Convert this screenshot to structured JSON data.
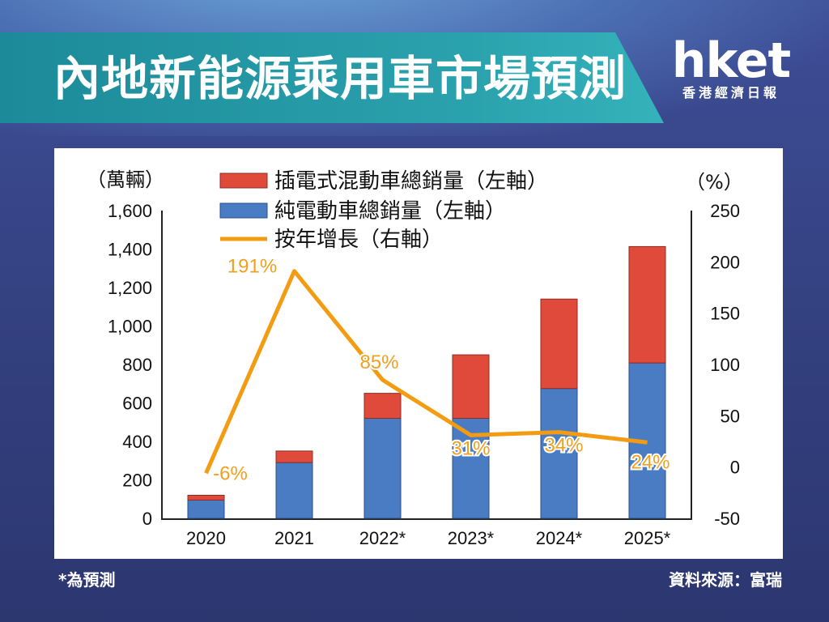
{
  "title": "內地新能源乘用車市場預測",
  "logo": {
    "main": "hket",
    "sub": "香港經濟日報"
  },
  "footnote": "*為預測",
  "source": "資料來源：富瑞",
  "colors": {
    "phev": "#e04a3a",
    "bev": "#4a7cc4",
    "growth": "#f39c12"
  },
  "chart_data": {
    "type": "bar",
    "stacked": true,
    "categories": [
      "2020",
      "2021",
      "2022*",
      "2023*",
      "2024*",
      "2025*"
    ],
    "series": [
      {
        "name": "純電動車總銷量（左軸）",
        "axis": "left",
        "values": [
          95,
          290,
          520,
          520,
          675,
          808
        ]
      },
      {
        "name": "插電式混動車總銷量（左軸）",
        "axis": "left",
        "values": [
          25,
          60,
          130,
          330,
          465,
          605
        ]
      },
      {
        "name": "按年增長（右軸）",
        "axis": "right",
        "type": "line",
        "values": [
          -6,
          191,
          85,
          31,
          34,
          24
        ],
        "labels": [
          "-6%",
          "191%",
          "85%",
          "31%",
          "34%",
          "24%"
        ]
      }
    ],
    "y_left": {
      "unit": "（萬輛）",
      "range": [
        0,
        1600
      ],
      "ticks": [
        "0",
        "200",
        "400",
        "600",
        "800",
        "1,000",
        "1,200",
        "1,400",
        "1,600"
      ]
    },
    "y_right": {
      "unit": "（%）",
      "range": [
        -50,
        250
      ],
      "ticks": [
        "-50",
        "0",
        "50",
        "100",
        "150",
        "200",
        "250"
      ]
    },
    "legend_placement": "top-center"
  }
}
